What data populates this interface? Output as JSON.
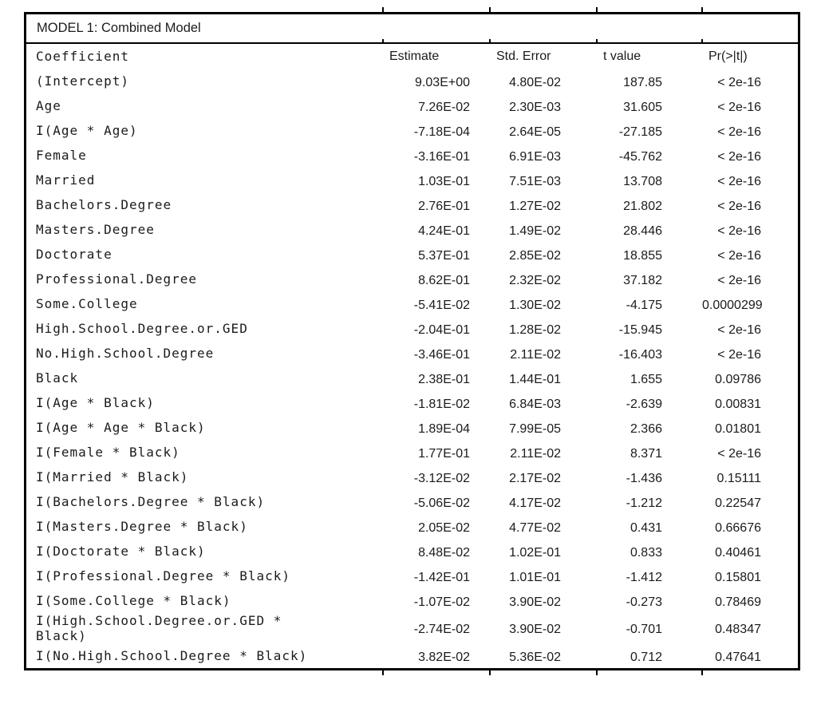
{
  "colors": {
    "text": "#1b1b1b",
    "border": "#000000",
    "background": "#ffffff"
  },
  "table": {
    "title": "MODEL 1: Combined Model",
    "columns": [
      "Coefficient",
      "Estimate",
      "Std. Error",
      "t value",
      "Pr(>|t|)"
    ],
    "rows": [
      {
        "coefficient": "(Intercept)",
        "estimate": "9.03E+00",
        "std_error": "4.80E-02",
        "t_value": "187.85",
        "p_value": "< 2e-16"
      },
      {
        "coefficient": "Age",
        "estimate": "7.26E-02",
        "std_error": "2.30E-03",
        "t_value": "31.605",
        "p_value": "< 2e-16"
      },
      {
        "coefficient": "I(Age * Age)",
        "estimate": "-7.18E-04",
        "std_error": "2.64E-05",
        "t_value": "-27.185",
        "p_value": "< 2e-16"
      },
      {
        "coefficient": "Female",
        "estimate": "-3.16E-01",
        "std_error": "6.91E-03",
        "t_value": "-45.762",
        "p_value": "< 2e-16"
      },
      {
        "coefficient": "Married",
        "estimate": "1.03E-01",
        "std_error": "7.51E-03",
        "t_value": "13.708",
        "p_value": "< 2e-16"
      },
      {
        "coefficient": "Bachelors.Degree",
        "estimate": "2.76E-01",
        "std_error": "1.27E-02",
        "t_value": "21.802",
        "p_value": "< 2e-16"
      },
      {
        "coefficient": "Masters.Degree",
        "estimate": "4.24E-01",
        "std_error": "1.49E-02",
        "t_value": "28.446",
        "p_value": "< 2e-16"
      },
      {
        "coefficient": "Doctorate",
        "estimate": "5.37E-01",
        "std_error": "2.85E-02",
        "t_value": "18.855",
        "p_value": "< 2e-16"
      },
      {
        "coefficient": "Professional.Degree",
        "estimate": "8.62E-01",
        "std_error": "2.32E-02",
        "t_value": "37.182",
        "p_value": "< 2e-16"
      },
      {
        "coefficient": "Some.College",
        "estimate": "-5.41E-02",
        "std_error": "1.30E-02",
        "t_value": "-4.175",
        "p_value": "0.0000299"
      },
      {
        "coefficient": "High.School.Degree.or.GED",
        "estimate": "-2.04E-01",
        "std_error": "1.28E-02",
        "t_value": "-15.945",
        "p_value": "< 2e-16"
      },
      {
        "coefficient": "No.High.School.Degree",
        "estimate": "-3.46E-01",
        "std_error": "2.11E-02",
        "t_value": "-16.403",
        "p_value": "< 2e-16"
      },
      {
        "coefficient": "Black",
        "estimate": "2.38E-01",
        "std_error": "1.44E-01",
        "t_value": "1.655",
        "p_value": "0.09786"
      },
      {
        "coefficient": "I(Age * Black)",
        "estimate": "-1.81E-02",
        "std_error": "6.84E-03",
        "t_value": "-2.639",
        "p_value": "0.00831"
      },
      {
        "coefficient": "I(Age * Age * Black)",
        "estimate": "1.89E-04",
        "std_error": "7.99E-05",
        "t_value": "2.366",
        "p_value": "0.01801"
      },
      {
        "coefficient": "I(Female * Black)",
        "estimate": "1.77E-01",
        "std_error": "2.11E-02",
        "t_value": "8.371",
        "p_value": "< 2e-16"
      },
      {
        "coefficient": "I(Married * Black)",
        "estimate": "-3.12E-02",
        "std_error": "2.17E-02",
        "t_value": "-1.436",
        "p_value": "0.15111"
      },
      {
        "coefficient": "I(Bachelors.Degree * Black)",
        "estimate": "-5.06E-02",
        "std_error": "4.17E-02",
        "t_value": "-1.212",
        "p_value": "0.22547"
      },
      {
        "coefficient": "I(Masters.Degree * Black)",
        "estimate": "2.05E-02",
        "std_error": "4.77E-02",
        "t_value": "0.431",
        "p_value": "0.66676"
      },
      {
        "coefficient": "I(Doctorate * Black)",
        "estimate": "8.48E-02",
        "std_error": "1.02E-01",
        "t_value": "0.833",
        "p_value": "0.40461"
      },
      {
        "coefficient": "I(Professional.Degree * Black)",
        "estimate": "-1.42E-01",
        "std_error": "1.01E-01",
        "t_value": "-1.412",
        "p_value": "0.15801"
      },
      {
        "coefficient": "I(Some.College * Black)",
        "estimate": "-1.07E-02",
        "std_error": "3.90E-02",
        "t_value": "-0.273",
        "p_value": "0.78469"
      },
      {
        "coefficient": "I(High.School.Degree.or.GED *\nBlack)",
        "estimate": "-2.74E-02",
        "std_error": "3.90E-02",
        "t_value": "-0.701",
        "p_value": "0.48347"
      },
      {
        "coefficient": "I(No.High.School.Degree * Black)",
        "estimate": "3.82E-02",
        "std_error": "5.36E-02",
        "t_value": "0.712",
        "p_value": "0.47641"
      }
    ]
  }
}
